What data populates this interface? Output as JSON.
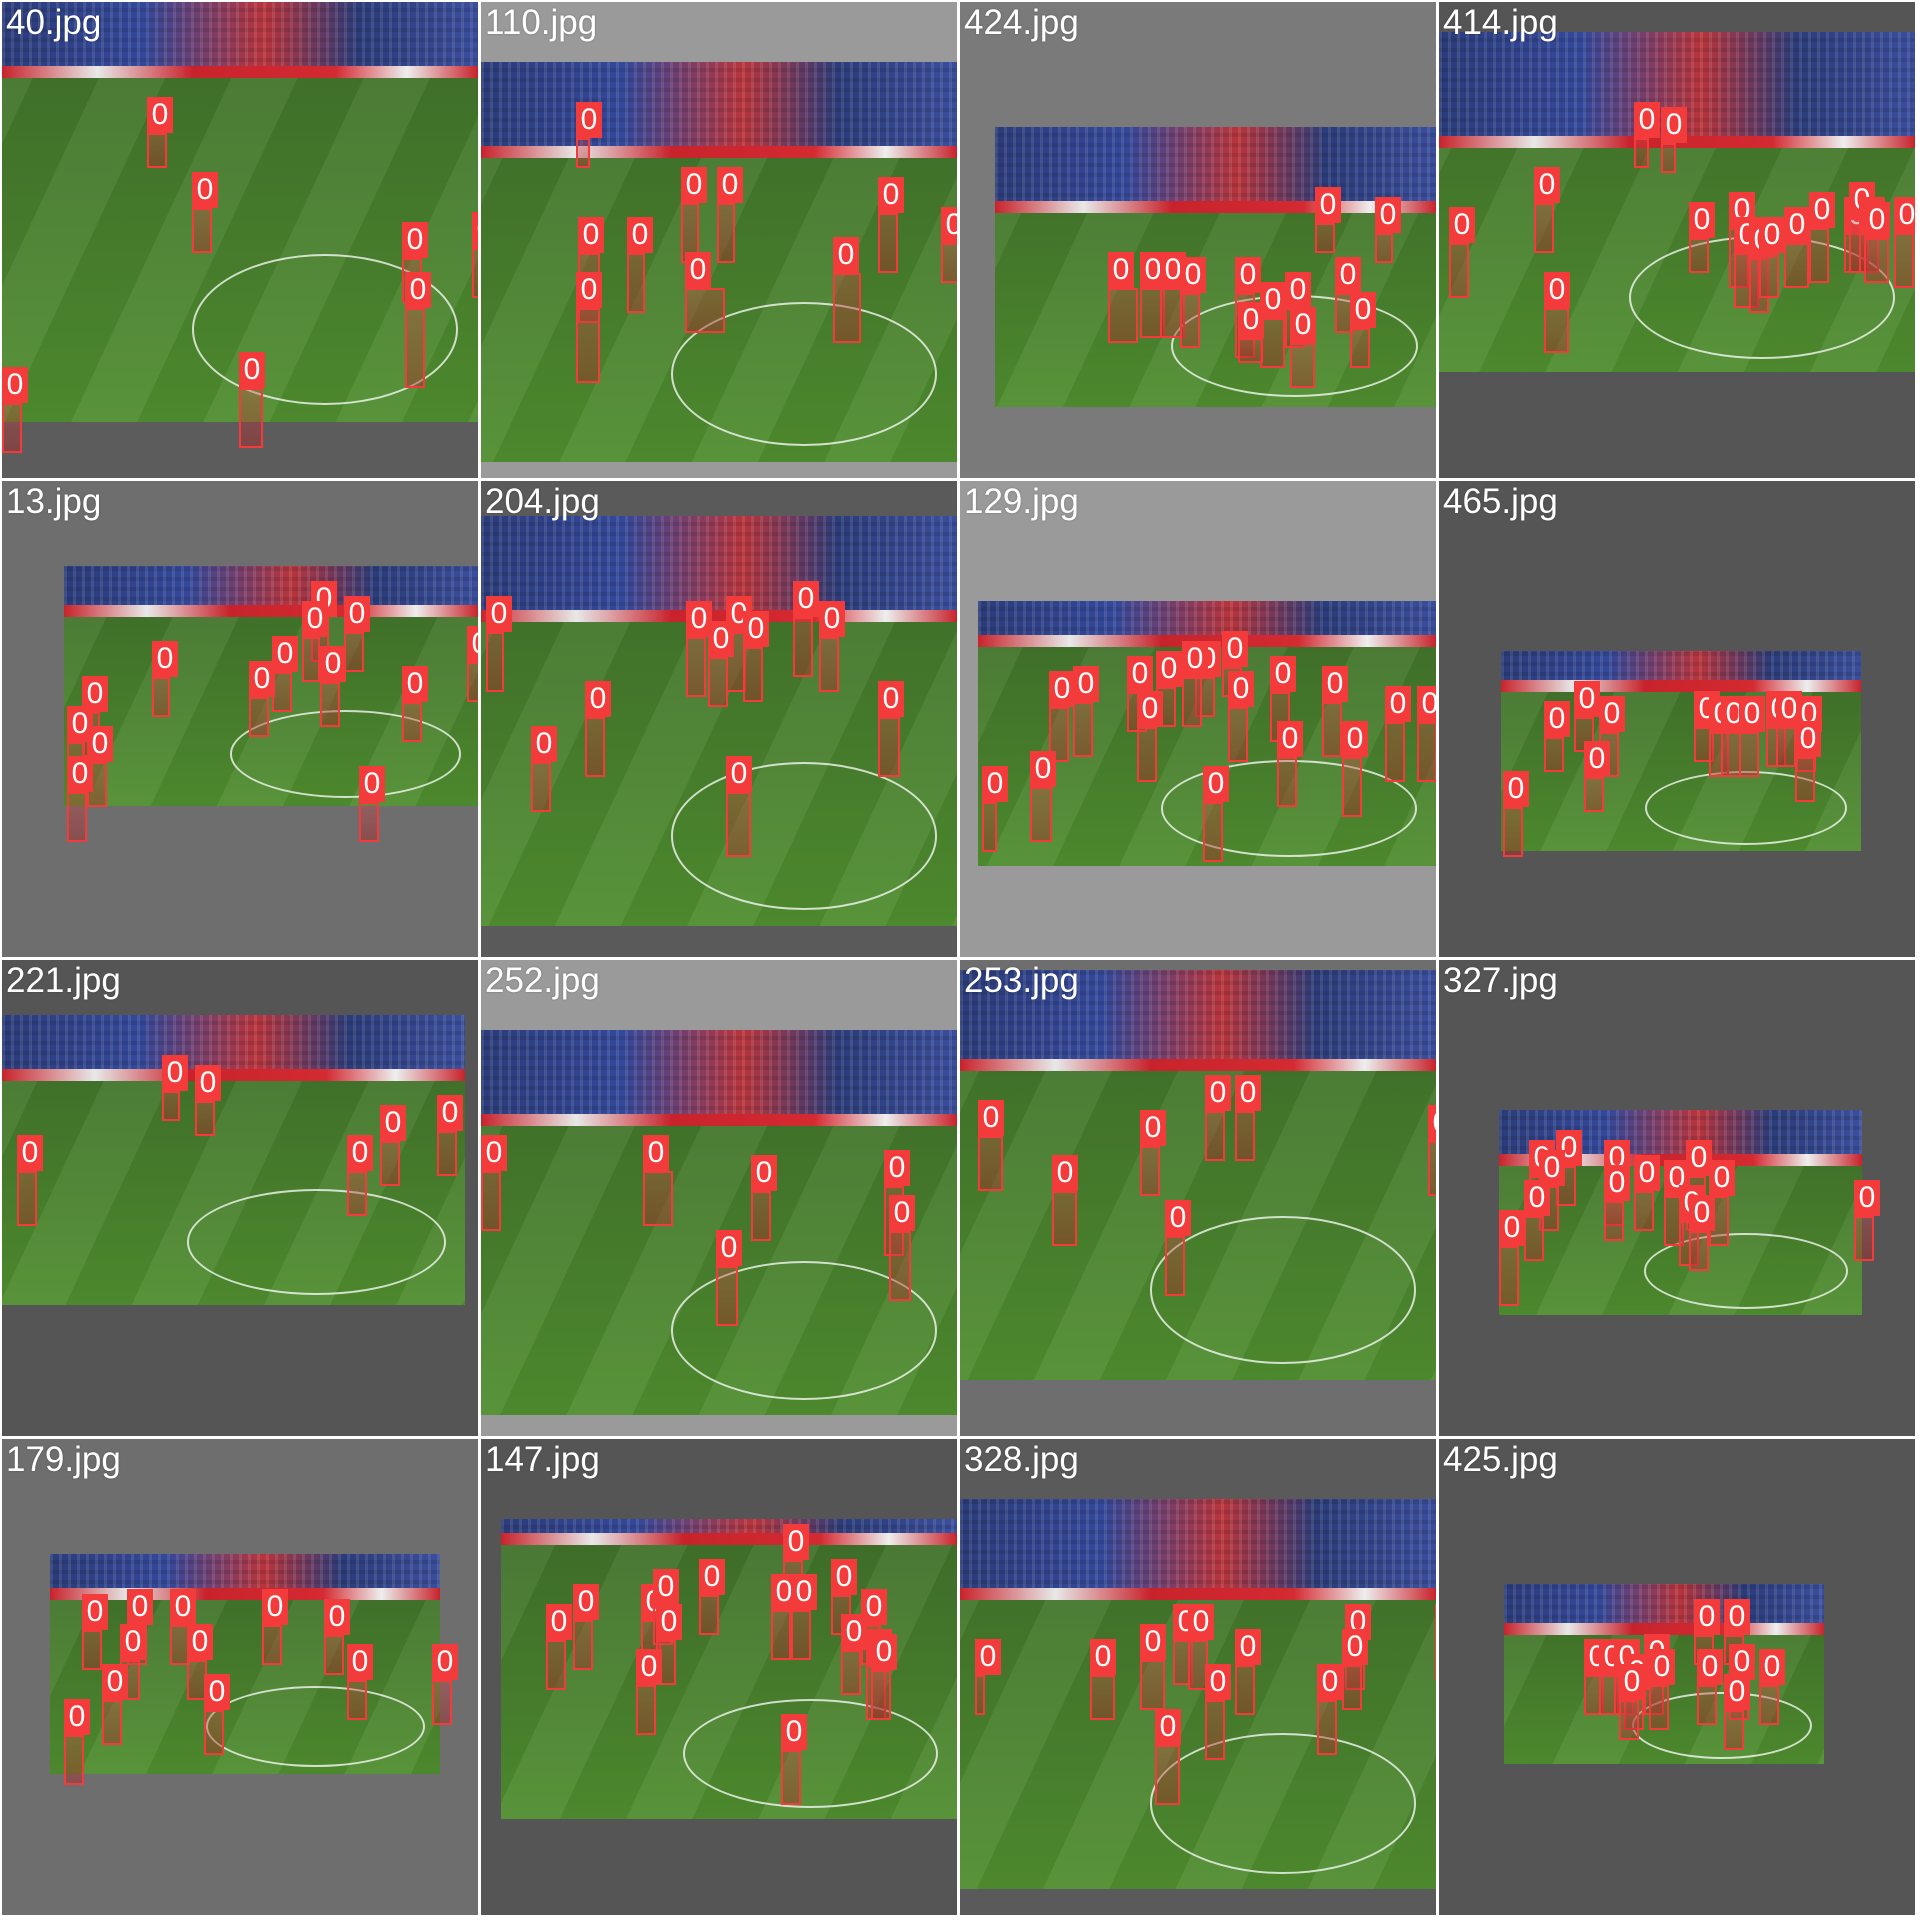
{
  "tiles": [
    {
      "name": "40.jpg",
      "bg": "#5c5c5c",
      "photo": [
        0,
        0,
        476,
        420
      ],
      "stand": 70,
      "boxes": [
        [
          145,
          95,
          20,
          35
        ],
        [
          190,
          170,
          20,
          45
        ],
        [
          400,
          220,
          20,
          45
        ],
        [
          403,
          270,
          20,
          80
        ],
        [
          470,
          210,
          10,
          50
        ],
        [
          0,
          365,
          20,
          50
        ],
        [
          237,
          350,
          24,
          60
        ]
      ]
    },
    {
      "name": "110.jpg",
      "bg": "#9a9a9a",
      "photo": [
        0,
        60,
        476,
        400
      ],
      "stand": 90,
      "boxes": [
        [
          95,
          100,
          14,
          30
        ],
        [
          200,
          165,
          18,
          60
        ],
        [
          236,
          165,
          18,
          60
        ],
        [
          97,
          215,
          22,
          70
        ],
        [
          146,
          215,
          18,
          60
        ],
        [
          95,
          270,
          24,
          75
        ],
        [
          204,
          250,
          40,
          45
        ],
        [
          397,
          175,
          20,
          60
        ],
        [
          352,
          235,
          28,
          70
        ],
        [
          460,
          205,
          20,
          40
        ]
      ]
    },
    {
      "name": "424.jpg",
      "bg": "#7a7a7a",
      "photo": [
        35,
        125,
        441,
        280
      ],
      "stand": 80,
      "boxes": [
        [
          355,
          185,
          20,
          30
        ],
        [
          415,
          195,
          18,
          30
        ],
        [
          148,
          250,
          30,
          55
        ],
        [
          180,
          250,
          25,
          50
        ],
        [
          200,
          250,
          25,
          50
        ],
        [
          220,
          255,
          20,
          55
        ],
        [
          275,
          255,
          20,
          65
        ],
        [
          300,
          280,
          25,
          50
        ],
        [
          325,
          270,
          20,
          40
        ],
        [
          375,
          255,
          20,
          40
        ],
        [
          278,
          300,
          25,
          25
        ],
        [
          390,
          290,
          20,
          40
        ],
        [
          330,
          305,
          25,
          45
        ]
      ]
    },
    {
      "name": "414.jpg",
      "bg": "#555555",
      "photo": [
        0,
        30,
        476,
        340
      ],
      "stand": 110,
      "boxes": [
        [
          195,
          100,
          15,
          30
        ],
        [
          222,
          105,
          15,
          30
        ],
        [
          95,
          165,
          20,
          50
        ],
        [
          10,
          205,
          20,
          55
        ],
        [
          250,
          200,
          20,
          35
        ],
        [
          290,
          190,
          20,
          60
        ],
        [
          295,
          215,
          25,
          55
        ],
        [
          310,
          220,
          20,
          55
        ],
        [
          320,
          215,
          20,
          45
        ],
        [
          345,
          205,
          25,
          45
        ],
        [
          370,
          190,
          20,
          55
        ],
        [
          405,
          195,
          25,
          40
        ],
        [
          410,
          180,
          20,
          55
        ],
        [
          420,
          195,
          20,
          40
        ],
        [
          425,
          200,
          25,
          45
        ],
        [
          455,
          195,
          20,
          55
        ],
        [
          105,
          270,
          25,
          45
        ]
      ]
    },
    {
      "name": "13.jpg",
      "bg": "#6e6e6e",
      "photo": [
        62,
        85,
        414,
        240
      ],
      "stand": 45,
      "boxes": [
        [
          309,
          100,
          18,
          45
        ],
        [
          300,
          120,
          18,
          45
        ],
        [
          342,
          115,
          20,
          40
        ],
        [
          465,
          145,
          15,
          40
        ],
        [
          270,
          155,
          20,
          40
        ],
        [
          150,
          160,
          18,
          40
        ],
        [
          247,
          180,
          20,
          40
        ],
        [
          318,
          165,
          20,
          45
        ],
        [
          400,
          185,
          20,
          40
        ],
        [
          80,
          195,
          18,
          45
        ],
        [
          65,
          225,
          18,
          50
        ],
        [
          85,
          245,
          20,
          45
        ],
        [
          65,
          275,
          20,
          50
        ],
        [
          357,
          285,
          20,
          40
        ]
      ]
    },
    {
      "name": "204.jpg",
      "bg": "#5a5a5a",
      "photo": [
        0,
        35,
        476,
        410
      ],
      "stand": 100,
      "boxes": [
        [
          5,
          115,
          18,
          60
        ],
        [
          205,
          120,
          20,
          60
        ],
        [
          245,
          115,
          20,
          60
        ],
        [
          312,
          100,
          20,
          60
        ],
        [
          748,
          115,
          18,
          60
        ],
        [
          262,
          130,
          20,
          55
        ],
        [
          227,
          140,
          20,
          50
        ],
        [
          338,
          120,
          20,
          55
        ],
        [
          104,
          200,
          20,
          60
        ],
        [
          50,
          245,
          20,
          50
        ],
        [
          397,
          200,
          22,
          60
        ],
        [
          245,
          275,
          25,
          65
        ]
      ]
    },
    {
      "name": "129.jpg",
      "bg": "#9a9a9a",
      "photo": [
        18,
        120,
        458,
        265
      ],
      "stand": 40,
      "boxes": [
        [
          262,
          150,
          20,
          30
        ],
        [
          235,
          160,
          20,
          40
        ],
        [
          222,
          160,
          20,
          50
        ],
        [
          196,
          170,
          20,
          40
        ],
        [
          167,
          175,
          20,
          40
        ],
        [
          113,
          185,
          20,
          55
        ],
        [
          268,
          190,
          20,
          55
        ],
        [
          89,
          190,
          20,
          55
        ],
        [
          310,
          175,
          20,
          50
        ],
        [
          362,
          185,
          20,
          55
        ],
        [
          425,
          205,
          20,
          60
        ],
        [
          177,
          210,
          20,
          55
        ],
        [
          457,
          205,
          20,
          60
        ],
        [
          317,
          240,
          20,
          50
        ],
        [
          70,
          270,
          22,
          55
        ],
        [
          382,
          240,
          20,
          60
        ],
        [
          22,
          285,
          15,
          50
        ],
        [
          243,
          285,
          20,
          60
        ]
      ]
    },
    {
      "name": "465.jpg",
      "bg": "#555555",
      "photo": [
        62,
        170,
        360,
        200
      ],
      "stand": 35,
      "boxes": [
        [
          135,
          200,
          20,
          35
        ],
        [
          105,
          220,
          20,
          35
        ],
        [
          160,
          215,
          20,
          45
        ],
        [
          255,
          210,
          20,
          35
        ],
        [
          270,
          215,
          20,
          45
        ],
        [
          282,
          215,
          20,
          45
        ],
        [
          300,
          215,
          20,
          45
        ],
        [
          327,
          210,
          20,
          40
        ],
        [
          337,
          210,
          20,
          40
        ],
        [
          357,
          215,
          20,
          40
        ],
        [
          356,
          240,
          20,
          45
        ],
        [
          145,
          260,
          20,
          35
        ],
        [
          64,
          290,
          20,
          50
        ]
      ]
    },
    {
      "name": "221.jpg",
      "bg": "#555555",
      "photo": [
        0,
        55,
        463,
        290
      ],
      "stand": 60,
      "boxes": [
        [
          160,
          95,
          18,
          30
        ],
        [
          193,
          105,
          20,
          35
        ],
        [
          378,
          145,
          20,
          45
        ],
        [
          435,
          135,
          20,
          45
        ],
        [
          345,
          175,
          20,
          45
        ],
        [
          15,
          175,
          20,
          55
        ]
      ]
    },
    {
      "name": "252.jpg",
      "bg": "#9a9a9a",
      "photo": [
        0,
        70,
        476,
        385
      ],
      "stand": 90,
      "boxes": [
        [
          162,
          175,
          30,
          55
        ],
        [
          270,
          195,
          20,
          50
        ],
        [
          403,
          190,
          20,
          70
        ],
        [
          408,
          235,
          22,
          70
        ],
        [
          0,
          175,
          20,
          60
        ],
        [
          235,
          270,
          22,
          60
        ]
      ]
    },
    {
      "name": "253.jpg",
      "bg": "#6e6e6e",
      "photo": [
        0,
        10,
        476,
        410
      ],
      "stand": 95,
      "boxes": [
        [
          245,
          115,
          20,
          50
        ],
        [
          275,
          115,
          20,
          50
        ],
        [
          18,
          140,
          25,
          55
        ],
        [
          180,
          150,
          20,
          50
        ],
        [
          468,
          145,
          10,
          55
        ],
        [
          92,
          195,
          25,
          55
        ],
        [
          205,
          240,
          20,
          60
        ]
      ]
    },
    {
      "name": "327.jpg",
      "bg": "#555555",
      "photo": [
        60,
        150,
        363,
        205
      ],
      "stand": 50,
      "boxes": [
        [
          117,
          170,
          20,
          40
        ],
        [
          90,
          180,
          20,
          40
        ],
        [
          100,
          190,
          20,
          45
        ],
        [
          165,
          180,
          20,
          50
        ],
        [
          195,
          195,
          20,
          40
        ],
        [
          247,
          180,
          20,
          55
        ],
        [
          225,
          200,
          20,
          50
        ],
        [
          270,
          200,
          20,
          50
        ],
        [
          85,
          220,
          20,
          45
        ],
        [
          165,
          205,
          20,
          40
        ],
        [
          240,
          225,
          20,
          45
        ],
        [
          250,
          235,
          20,
          40
        ],
        [
          415,
          220,
          20,
          45
        ],
        [
          60,
          250,
          20,
          60
        ]
      ]
    },
    {
      "name": "179.jpg",
      "bg": "#6e6e6e",
      "photo": [
        48,
        115,
        390,
        220
      ],
      "stand": 40,
      "boxes": [
        [
          80,
          155,
          20,
          40
        ],
        [
          125,
          150,
          20,
          40
        ],
        [
          168,
          150,
          20,
          40
        ],
        [
          118,
          185,
          20,
          40
        ],
        [
          260,
          150,
          20,
          40
        ],
        [
          185,
          185,
          20,
          40
        ],
        [
          322,
          160,
          20,
          40
        ],
        [
          345,
          205,
          20,
          40
        ],
        [
          430,
          205,
          20,
          45
        ],
        [
          100,
          225,
          20,
          45
        ],
        [
          202,
          235,
          20,
          45
        ],
        [
          62,
          260,
          20,
          50
        ]
      ]
    },
    {
      "name": "147.jpg",
      "bg": "#555555",
      "photo": [
        20,
        80,
        456,
        300
      ],
      "stand": 20,
      "boxes": [
        [
          302,
          85,
          20,
          45
        ],
        [
          218,
          120,
          20,
          40
        ],
        [
          160,
          145,
          20,
          40
        ],
        [
          172,
          130,
          20,
          40
        ],
        [
          92,
          145,
          20,
          50
        ],
        [
          65,
          165,
          20,
          50
        ],
        [
          290,
          135,
          20,
          50
        ],
        [
          310,
          135,
          20,
          50
        ],
        [
          350,
          120,
          20,
          40
        ],
        [
          380,
          150,
          20,
          40
        ],
        [
          175,
          165,
          20,
          45
        ],
        [
          360,
          175,
          20,
          45
        ],
        [
          385,
          190,
          20,
          55
        ],
        [
          390,
          195,
          20,
          50
        ],
        [
          155,
          210,
          20,
          50
        ],
        [
          300,
          275,
          20,
          55
        ]
      ]
    },
    {
      "name": "328.jpg",
      "bg": "#5a5a5a",
      "photo": [
        0,
        60,
        476,
        390
      ],
      "stand": 95,
      "boxes": [
        [
          213,
          165,
          20,
          45
        ],
        [
          228,
          165,
          20,
          50
        ],
        [
          385,
          165,
          20,
          50
        ],
        [
          382,
          190,
          20,
          45
        ],
        [
          130,
          200,
          25,
          45
        ],
        [
          180,
          185,
          25,
          50
        ],
        [
          275,
          190,
          20,
          50
        ],
        [
          475,
          165,
          5,
          40
        ],
        [
          245,
          225,
          20,
          60
        ],
        [
          357,
          225,
          20,
          55
        ],
        [
          195,
          270,
          25,
          60
        ],
        [
          15,
          200,
          10,
          40
        ]
      ]
    },
    {
      "name": "425.jpg",
      "bg": "#555555",
      "photo": [
        65,
        145,
        320,
        180
      ],
      "stand": 45,
      "boxes": [
        [
          255,
          160,
          20,
          30
        ],
        [
          285,
          160,
          20,
          30
        ],
        [
          145,
          200,
          20,
          40
        ],
        [
          160,
          200,
          20,
          40
        ],
        [
          175,
          200,
          20,
          40
        ],
        [
          205,
          195,
          20,
          45
        ],
        [
          185,
          215,
          20,
          40
        ],
        [
          180,
          225,
          20,
          40
        ],
        [
          210,
          210,
          20,
          45
        ],
        [
          258,
          210,
          20,
          40
        ],
        [
          290,
          205,
          20,
          40
        ],
        [
          320,
          210,
          20,
          40
        ],
        [
          285,
          235,
          20,
          40
        ]
      ]
    }
  ],
  "box_label": "0",
  "box_color": "#f43b3b"
}
